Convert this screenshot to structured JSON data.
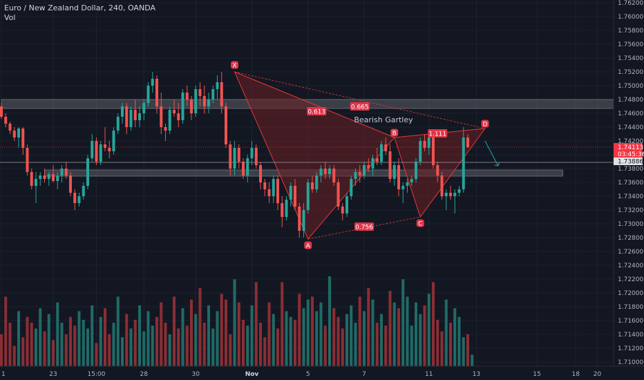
{
  "legend": {
    "title": "Euro / New Zealand Dollar, 240, OANDA",
    "volume_label": "Vol"
  },
  "colors": {
    "background": "#131722",
    "grid": "#1e2230",
    "up": "#26a69a",
    "down": "#ef5350",
    "vol_up": "#1f6b66",
    "vol_down": "#8b2e34",
    "pattern_line": "#e53935",
    "pattern_fill": "#6b1f24",
    "zone_fill": "#5c5f66",
    "axis_text": "#b2b5be",
    "badge": "#e0364a",
    "price_label": "#f23645"
  },
  "chart_data": {
    "type": "candlestick",
    "symbol": "EURNZD",
    "interval": "240",
    "y_axis": {
      "min": 1.709,
      "max": 1.763,
      "ticks": [
        1.762,
        1.76,
        1.758,
        1.756,
        1.754,
        1.752,
        1.75,
        1.748,
        1.746,
        1.744,
        1.742,
        1.74,
        1.738,
        1.736,
        1.734,
        1.732,
        1.73,
        1.728,
        1.726,
        1.724,
        1.722,
        1.72,
        1.718,
        1.716,
        1.714,
        1.712,
        1.71
      ],
      "tick_labels": [
        "1.76200",
        "1.76000",
        "1.75800",
        "1.75600",
        "1.75400",
        "1.75200",
        "1.75000",
        "1.74800",
        "1.74600",
        "1.74400",
        "1.74200",
        "1.74000",
        "1.73800",
        "1.73600",
        "1.73400",
        "1.73200",
        "1.73000",
        "1.72800",
        "1.72600",
        "1.72400",
        "1.72200",
        "1.72000",
        "1.71800",
        "1.71600",
        "1.71400",
        "1.71200",
        "1.71000"
      ]
    },
    "x_axis": {
      "labels": [
        {
          "label": "1",
          "bar": 0
        },
        {
          "label": "23",
          "bar": 12
        },
        {
          "label": "15:00",
          "bar": 22
        },
        {
          "label": "28",
          "bar": 33
        },
        {
          "label": "30",
          "bar": 45
        },
        {
          "label": "Nov",
          "bar": 58
        },
        {
          "label": "5",
          "bar": 71
        },
        {
          "label": "7",
          "bar": 84
        },
        {
          "label": "11",
          "bar": 99
        },
        {
          "label": "13",
          "bar": 110
        },
        {
          "label": "15",
          "bar": 124
        },
        {
          "label": "18",
          "bar": 133
        },
        {
          "label": "20",
          "bar": 138
        }
      ]
    },
    "bar_count_span": 145,
    "candles": [
      [
        1.747,
        1.7475,
        1.7452,
        1.7455
      ],
      [
        1.7455,
        1.746,
        1.744,
        1.7445
      ],
      [
        1.7445,
        1.7448,
        1.743,
        1.7435
      ],
      [
        1.7435,
        1.744,
        1.742,
        1.7425
      ],
      [
        1.7425,
        1.744,
        1.741,
        1.7438
      ],
      [
        1.7438,
        1.744,
        1.74,
        1.741
      ],
      [
        1.741,
        1.7415,
        1.737,
        1.7375
      ],
      [
        1.7375,
        1.738,
        1.735,
        1.7355
      ],
      [
        1.7355,
        1.7375,
        1.733,
        1.7365
      ],
      [
        1.7365,
        1.7375,
        1.7355,
        1.737
      ],
      [
        1.737,
        1.738,
        1.736,
        1.7365
      ],
      [
        1.7365,
        1.7375,
        1.7355,
        1.7372
      ],
      [
        1.7372,
        1.7385,
        1.736,
        1.7362
      ],
      [
        1.7362,
        1.7375,
        1.735,
        1.737
      ],
      [
        1.737,
        1.7385,
        1.736,
        1.738
      ],
      [
        1.738,
        1.739,
        1.7365,
        1.737
      ],
      [
        1.737,
        1.7375,
        1.734,
        1.7345
      ],
      [
        1.7345,
        1.735,
        1.732,
        1.733
      ],
      [
        1.733,
        1.7345,
        1.7325,
        1.734
      ],
      [
        1.734,
        1.736,
        1.7335,
        1.7355
      ],
      [
        1.7355,
        1.74,
        1.735,
        1.7395
      ],
      [
        1.7395,
        1.743,
        1.739,
        1.742
      ],
      [
        1.742,
        1.7425,
        1.7385,
        1.739
      ],
      [
        1.739,
        1.742,
        1.7385,
        1.7415
      ],
      [
        1.7415,
        1.744,
        1.7405,
        1.741
      ],
      [
        1.741,
        1.742,
        1.7395,
        1.7405
      ],
      [
        1.7405,
        1.744,
        1.74,
        1.7435
      ],
      [
        1.7435,
        1.746,
        1.743,
        1.7455
      ],
      [
        1.7455,
        1.7475,
        1.7445,
        1.747
      ],
      [
        1.747,
        1.7475,
        1.743,
        1.744
      ],
      [
        1.744,
        1.747,
        1.7435,
        1.7465
      ],
      [
        1.7465,
        1.748,
        1.744,
        1.745
      ],
      [
        1.745,
        1.747,
        1.744,
        1.746
      ],
      [
        1.746,
        1.748,
        1.745,
        1.7475
      ],
      [
        1.7475,
        1.7505,
        1.747,
        1.75
      ],
      [
        1.75,
        1.752,
        1.749,
        1.751
      ],
      [
        1.751,
        1.7515,
        1.746,
        1.747
      ],
      [
        1.747,
        1.749,
        1.743,
        1.744
      ],
      [
        1.744,
        1.7445,
        1.742,
        1.7435
      ],
      [
        1.7435,
        1.747,
        1.743,
        1.7465
      ],
      [
        1.7465,
        1.748,
        1.7455,
        1.746
      ],
      [
        1.746,
        1.7475,
        1.744,
        1.745
      ],
      [
        1.745,
        1.7495,
        1.7445,
        1.749
      ],
      [
        1.749,
        1.75,
        1.747,
        1.748
      ],
      [
        1.748,
        1.7485,
        1.745,
        1.746
      ],
      [
        1.746,
        1.75,
        1.7455,
        1.7495
      ],
      [
        1.7495,
        1.7505,
        1.747,
        1.7485
      ],
      [
        1.7485,
        1.75,
        1.746,
        1.747
      ],
      [
        1.747,
        1.749,
        1.746,
        1.748
      ],
      [
        1.748,
        1.75,
        1.7475,
        1.7495
      ],
      [
        1.7495,
        1.7515,
        1.748,
        1.7505
      ],
      [
        1.7505,
        1.752,
        1.746,
        1.747
      ],
      [
        1.747,
        1.7475,
        1.741,
        1.7415
      ],
      [
        1.7415,
        1.742,
        1.737,
        1.738
      ],
      [
        1.738,
        1.742,
        1.737,
        1.741
      ],
      [
        1.741,
        1.7415,
        1.738,
        1.739
      ],
      [
        1.739,
        1.7395,
        1.7365,
        1.737
      ],
      [
        1.737,
        1.74,
        1.736,
        1.7395
      ],
      [
        1.7395,
        1.742,
        1.7385,
        1.741
      ],
      [
        1.741,
        1.7415,
        1.738,
        1.7385
      ],
      [
        1.7385,
        1.739,
        1.735,
        1.736
      ],
      [
        1.736,
        1.7365,
        1.734,
        1.735
      ],
      [
        1.735,
        1.736,
        1.733,
        1.734
      ],
      [
        1.734,
        1.737,
        1.733,
        1.7365
      ],
      [
        1.7365,
        1.737,
        1.732,
        1.733
      ],
      [
        1.733,
        1.734,
        1.7295,
        1.731
      ],
      [
        1.731,
        1.734,
        1.7305,
        1.7335
      ],
      [
        1.7335,
        1.736,
        1.7325,
        1.7355
      ],
      [
        1.7355,
        1.7365,
        1.732,
        1.7325
      ],
      [
        1.7325,
        1.733,
        1.728,
        1.729
      ],
      [
        1.729,
        1.733,
        1.728,
        1.732
      ],
      [
        1.732,
        1.7365,
        1.7315,
        1.736
      ],
      [
        1.736,
        1.737,
        1.7345,
        1.735
      ],
      [
        1.735,
        1.7375,
        1.7345,
        1.737
      ],
      [
        1.737,
        1.7385,
        1.736,
        1.738
      ],
      [
        1.738,
        1.739,
        1.7365,
        1.7372
      ],
      [
        1.7372,
        1.7385,
        1.7365,
        1.738
      ],
      [
        1.738,
        1.7385,
        1.7355,
        1.736
      ],
      [
        1.736,
        1.7365,
        1.732,
        1.7325
      ],
      [
        1.7325,
        1.733,
        1.7305,
        1.7315
      ],
      [
        1.7315,
        1.7345,
        1.731,
        1.734
      ],
      [
        1.734,
        1.737,
        1.7335,
        1.7365
      ],
      [
        1.7365,
        1.738,
        1.7355,
        1.7375
      ],
      [
        1.7375,
        1.7385,
        1.736,
        1.737
      ],
      [
        1.737,
        1.739,
        1.7365,
        1.7385
      ],
      [
        1.7385,
        1.7395,
        1.7375,
        1.738
      ],
      [
        1.738,
        1.74,
        1.737,
        1.7395
      ],
      [
        1.7395,
        1.741,
        1.7385,
        1.739
      ],
      [
        1.739,
        1.742,
        1.7385,
        1.7415
      ],
      [
        1.7415,
        1.7425,
        1.74,
        1.7405
      ],
      [
        1.7405,
        1.7415,
        1.736,
        1.7365
      ],
      [
        1.7365,
        1.739,
        1.7355,
        1.7385
      ],
      [
        1.7385,
        1.7395,
        1.734,
        1.735
      ],
      [
        1.735,
        1.736,
        1.733,
        1.7355
      ],
      [
        1.7355,
        1.7365,
        1.7345,
        1.736
      ],
      [
        1.736,
        1.737,
        1.7355,
        1.7365
      ],
      [
        1.7365,
        1.7395,
        1.736,
        1.739
      ],
      [
        1.739,
        1.7425,
        1.7385,
        1.742
      ],
      [
        1.742,
        1.743,
        1.7405,
        1.741
      ],
      [
        1.741,
        1.743,
        1.74,
        1.7425
      ],
      [
        1.7425,
        1.743,
        1.738,
        1.7385
      ],
      [
        1.7385,
        1.739,
        1.736,
        1.737
      ],
      [
        1.737,
        1.7375,
        1.7335,
        1.734
      ],
      [
        1.734,
        1.735,
        1.732,
        1.7345
      ],
      [
        1.7345,
        1.7355,
        1.7335,
        1.734
      ],
      [
        1.734,
        1.735,
        1.7315,
        1.7345
      ],
      [
        1.7345,
        1.7355,
        1.734,
        1.735
      ],
      [
        1.735,
        1.744,
        1.7345,
        1.7425
      ],
      [
        1.7425,
        1.743,
        1.741,
        1.7411
      ]
    ],
    "volume": [
      22,
      48,
      30,
      14,
      38,
      20,
      34,
      30,
      26,
      40,
      24,
      36,
      18,
      44,
      30,
      22,
      34,
      28,
      38,
      32,
      26,
      42,
      16,
      34,
      40,
      22,
      30,
      48,
      20,
      36,
      26,
      32,
      42,
      24,
      38,
      28,
      34,
      44,
      30,
      22,
      48,
      26,
      40,
      28,
      46,
      36,
      54,
      30,
      42,
      26,
      38,
      50,
      46,
      22,
      60,
      44,
      32,
      28,
      42,
      58,
      30,
      20,
      44,
      36,
      26,
      58,
      38,
      34,
      32,
      50,
      40,
      46,
      48,
      38,
      44,
      28,
      62,
      40,
      34,
      26,
      36,
      42,
      30,
      48,
      38,
      54,
      46,
      30,
      36,
      28,
      52,
      44,
      40,
      60,
      48,
      28,
      44,
      36,
      42,
      50,
      58,
      32,
      24,
      46,
      30,
      40,
      34,
      20,
      22,
      8
    ],
    "volume_ylim": [
      0,
      62
    ],
    "horizontal_zones": [
      {
        "low": 1.7467,
        "high": 1.748,
        "x_start_bar": 0,
        "x_end_bar": 143
      },
      {
        "low": 1.7369,
        "high": 1.7378,
        "x_start_bar": 10,
        "x_end_bar": 130
      }
    ],
    "pattern": {
      "name": "Bearish Gartley",
      "points": {
        "X": {
          "bar": 54,
          "price": 1.752
        },
        "A": {
          "bar": 71,
          "price": 1.7278
        },
        "B": {
          "bar": 91,
          "price": 1.7425
        },
        "C": {
          "bar": 97,
          "price": 1.731
        },
        "D": {
          "bar": 112,
          "price": 1.7438
        }
      },
      "ratios": [
        {
          "label": "0.613",
          "bar": 73,
          "price": 1.7463
        },
        {
          "label": "0.665",
          "bar": 83,
          "price": 1.747
        },
        {
          "label": "0.756",
          "bar": 84,
          "price": 1.7296
        },
        {
          "label": "1.111",
          "bar": 101,
          "price": 1.7431
        }
      ]
    },
    "price_lines": [
      {
        "price": 1.7411,
        "label": "1.74113",
        "type": "current"
      },
      {
        "price": 1.7389,
        "label": "1.73886",
        "type": "reference"
      }
    ],
    "countdown": "03:45:36",
    "projection": {
      "from_bar": 112,
      "from_price": 1.742,
      "to_bar": 115,
      "to_price": 1.7384
    }
  }
}
